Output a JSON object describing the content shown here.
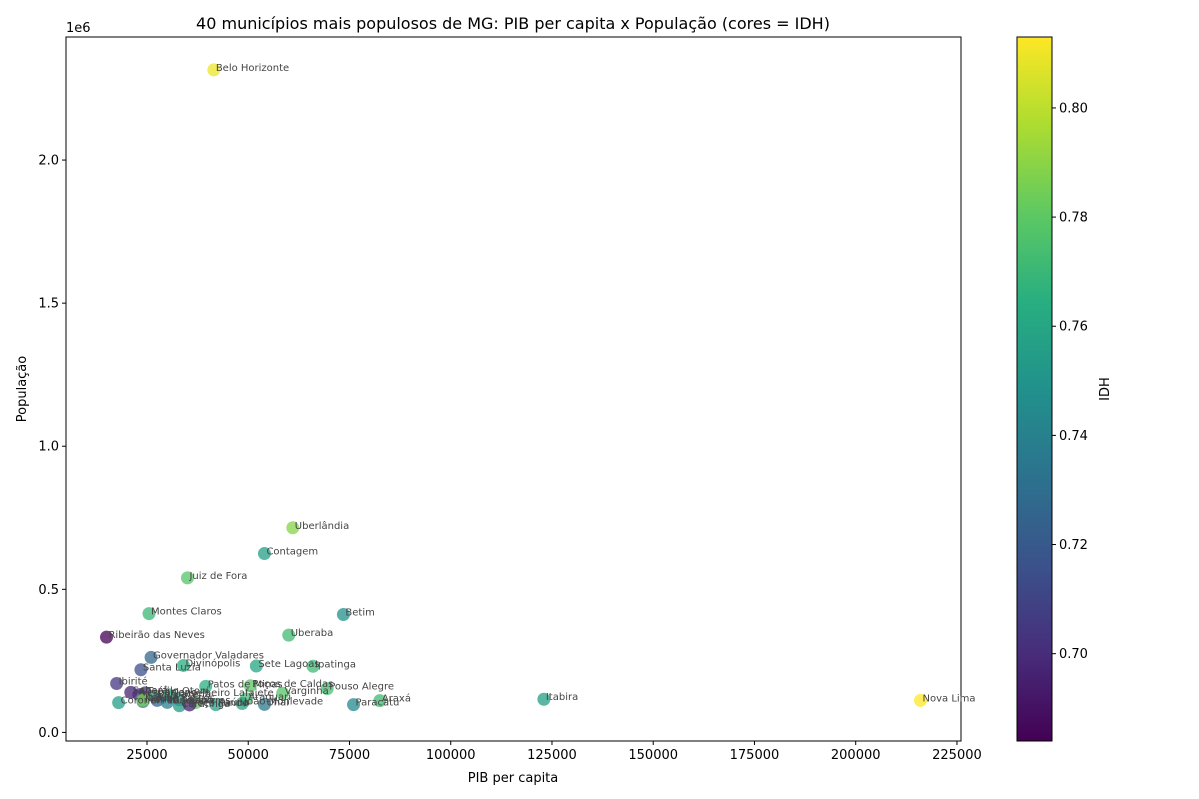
{
  "chart_data": {
    "type": "scatter",
    "title": "40 municípios mais populosos de MG: PIB per capita x População (cores = IDH)",
    "xlabel": "PIB per capita",
    "ylabel": "População",
    "y_offset_label": "1e6",
    "xlim": [
      5000,
      226000
    ],
    "ylim": [
      -30000,
      2430000
    ],
    "x_ticks": [
      25000,
      50000,
      75000,
      100000,
      125000,
      150000,
      175000,
      200000,
      225000
    ],
    "x_tick_labels": [
      "25000",
      "50000",
      "75000",
      "100000",
      "125000",
      "150000",
      "175000",
      "200000",
      "225000"
    ],
    "y_ticks": [
      0,
      500000,
      1000000,
      1500000,
      2000000
    ],
    "y_tick_labels": [
      "0.0",
      "0.5",
      "1.0",
      "1.5",
      "2.0"
    ],
    "colorbar": {
      "label": "IDH",
      "colormap": "viridis",
      "range": [
        0.684,
        0.813
      ],
      "ticks": [
        0.7,
        0.72,
        0.74,
        0.76,
        0.78,
        0.8
      ],
      "tick_labels": [
        "0.70",
        "0.72",
        "0.74",
        "0.76",
        "0.78",
        "0.80"
      ]
    },
    "grid": false,
    "points": [
      {
        "name": "Belo Horizonte",
        "x": 41500,
        "y": 2315000,
        "idh": 0.81
      },
      {
        "name": "Uberlândia",
        "x": 61000,
        "y": 715000,
        "idh": 0.789
      },
      {
        "name": "Contagem",
        "x": 54000,
        "y": 625000,
        "idh": 0.756
      },
      {
        "name": "Juiz de Fora",
        "x": 35000,
        "y": 540000,
        "idh": 0.778
      },
      {
        "name": "Montes Claros",
        "x": 25500,
        "y": 415000,
        "idh": 0.77
      },
      {
        "name": "Betim",
        "x": 73500,
        "y": 412000,
        "idh": 0.749
      },
      {
        "name": "Ribeirão das Neves",
        "x": 15000,
        "y": 333000,
        "idh": 0.684
      },
      {
        "name": "Uberaba",
        "x": 60000,
        "y": 340000,
        "idh": 0.772
      },
      {
        "name": "Governador Valadares",
        "x": 26000,
        "y": 262000,
        "idh": 0.727
      },
      {
        "name": "Divinópolis",
        "x": 34000,
        "y": 234000,
        "idh": 0.764
      },
      {
        "name": "Sete Lagoas",
        "x": 52000,
        "y": 232000,
        "idh": 0.76
      },
      {
        "name": "Ipatinga",
        "x": 66000,
        "y": 231000,
        "idh": 0.771
      },
      {
        "name": "Santa Luzia",
        "x": 23500,
        "y": 219000,
        "idh": 0.715
      },
      {
        "name": "Ibirité",
        "x": 17500,
        "y": 171000,
        "idh": 0.704
      },
      {
        "name": "Poços de Caldas",
        "x": 50500,
        "y": 163000,
        "idh": 0.779
      },
      {
        "name": "Patos de Minas",
        "x": 39500,
        "y": 161000,
        "idh": 0.765
      },
      {
        "name": "Pouso Alegre",
        "x": 69500,
        "y": 153000,
        "idh": 0.774
      },
      {
        "name": "Varginha",
        "x": 58500,
        "y": 137000,
        "idh": 0.778
      },
      {
        "name": "Conselheiro Lafaiete",
        "x": 30500,
        "y": 131000,
        "idh": 0.761
      },
      {
        "name": "Sabará",
        "x": 21000,
        "y": 140000,
        "idh": 0.697
      },
      {
        "name": "Vespasiano",
        "x": 23000,
        "y": 132000,
        "idh": 0.7
      },
      {
        "name": "Teófilo Otoni",
        "x": 24500,
        "y": 138000,
        "idh": 0.701
      },
      {
        "name": "Barbacena",
        "x": 27000,
        "y": 125000,
        "idh": 0.769
      },
      {
        "name": "Araguari",
        "x": 49500,
        "y": 117000,
        "idh": 0.773
      },
      {
        "name": "Araxá",
        "x": 82500,
        "y": 111000,
        "idh": 0.772
      },
      {
        "name": "Itabira",
        "x": 123000,
        "y": 116000,
        "idh": 0.756
      },
      {
        "name": "Nova Lima",
        "x": 216000,
        "y": 112000,
        "idh": 0.813
      },
      {
        "name": "Paracatu",
        "x": 76000,
        "y": 97000,
        "idh": 0.744
      },
      {
        "name": "Coronel Fabriciano",
        "x": 18000,
        "y": 104000,
        "idh": 0.755
      },
      {
        "name": "Muriaé",
        "x": 24000,
        "y": 108000,
        "idh": 0.734
      },
      {
        "name": "Ubá",
        "x": 27500,
        "y": 112000,
        "idh": 0.724
      },
      {
        "name": "Ituiutaba",
        "x": 30000,
        "y": 105000,
        "idh": 0.739
      },
      {
        "name": "Lavras",
        "x": 37000,
        "y": 104000,
        "idh": 0.782
      },
      {
        "name": "Passos",
        "x": 33000,
        "y": 114000,
        "idh": 0.756
      },
      {
        "name": "Caratinga",
        "x": 33000,
        "y": 93000,
        "idh": 0.754
      },
      {
        "name": "Itaúna",
        "x": 42000,
        "y": 97000,
        "idh": 0.758
      },
      {
        "name": "João Monlevade",
        "x": 48500,
        "y": 101000,
        "idh": 0.758
      },
      {
        "name": "Poço Fundo",
        "x": 35500,
        "y": 96000,
        "idh": 0.696
      },
      {
        "name": "Unaí",
        "x": 54000,
        "y": 98000,
        "idh": 0.736
      },
      {
        "name": "Itajubá",
        "x": 24000,
        "y": 113000,
        "idh": 0.787
      }
    ]
  }
}
